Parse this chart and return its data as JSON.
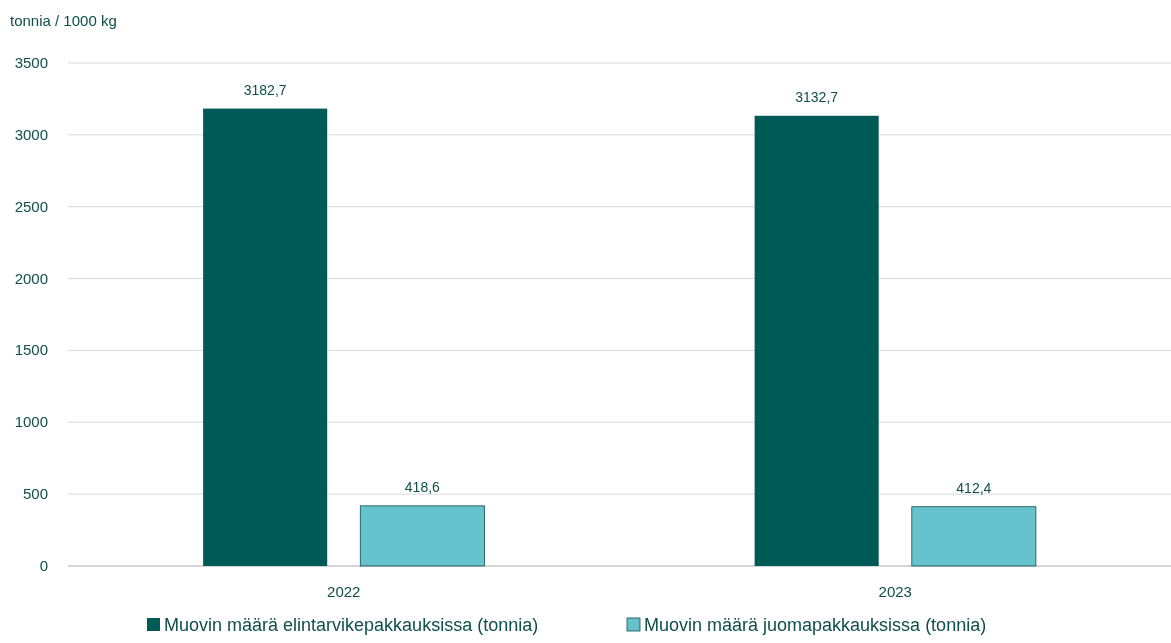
{
  "chart_data": {
    "type": "bar",
    "ylabel": "tonnia / 1000 kg",
    "categories": [
      "2022",
      "2023"
    ],
    "series": [
      {
        "name": "Muovin määrä elintarvikepakkauksissa (tonnia)",
        "color": "#005a55",
        "values": [
          3182.7,
          3132.7
        ],
        "value_labels": [
          "3182,7",
          "3132,7"
        ]
      },
      {
        "name": "Muovin määrä juomapakkauksissa (tonnia)",
        "color": "#66c2cc",
        "values": [
          418.6,
          412.4
        ],
        "value_labels": [
          "418,6",
          "412,4"
        ]
      }
    ],
    "ylim": [
      0,
      3500
    ],
    "yticks": [
      0,
      500,
      1000,
      1500,
      2000,
      2500,
      3000,
      3500
    ],
    "grid": "y",
    "legend": "bottom"
  }
}
